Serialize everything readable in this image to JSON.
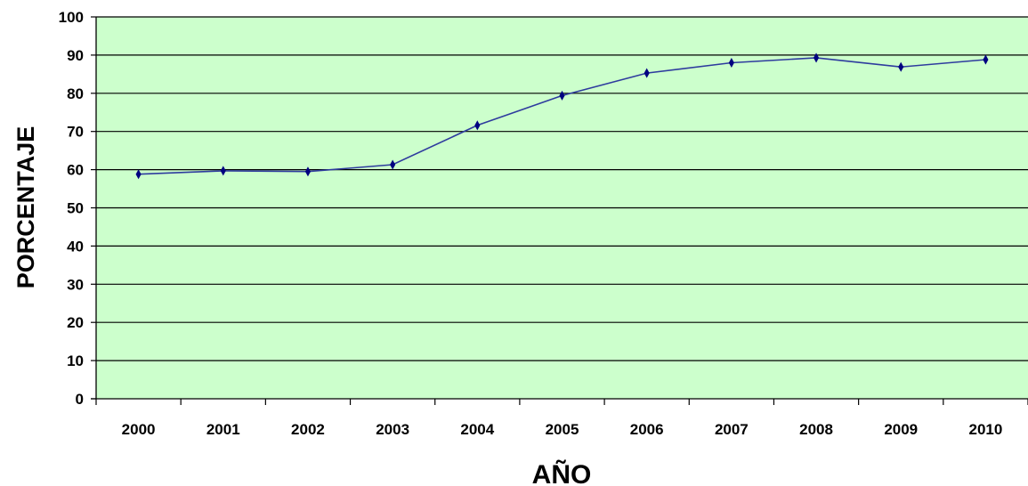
{
  "chart_data": {
    "type": "line",
    "title": "",
    "xlabel": "AÑO",
    "ylabel": "PORCENTAJE",
    "categories": [
      "2000",
      "2001",
      "2002",
      "2003",
      "2004",
      "2005",
      "2006",
      "2007",
      "2008",
      "2009",
      "2010"
    ],
    "series": [
      {
        "values": [
          58.8,
          59.7,
          59.5,
          61.3,
          71.6,
          79.4,
          85.3,
          88.0,
          89.3,
          86.9,
          88.8
        ]
      }
    ],
    "ylim": [
      0,
      100
    ],
    "yticks": [
      "0",
      "10",
      "20",
      "30",
      "40",
      "50",
      "60",
      "70",
      "80",
      "90",
      "100"
    ],
    "grid": true,
    "legend": "none",
    "colors": {
      "plot_background": "#ccffcc",
      "line": "#2e3b9e",
      "marker": "#000080",
      "gridline": "#000000"
    }
  }
}
